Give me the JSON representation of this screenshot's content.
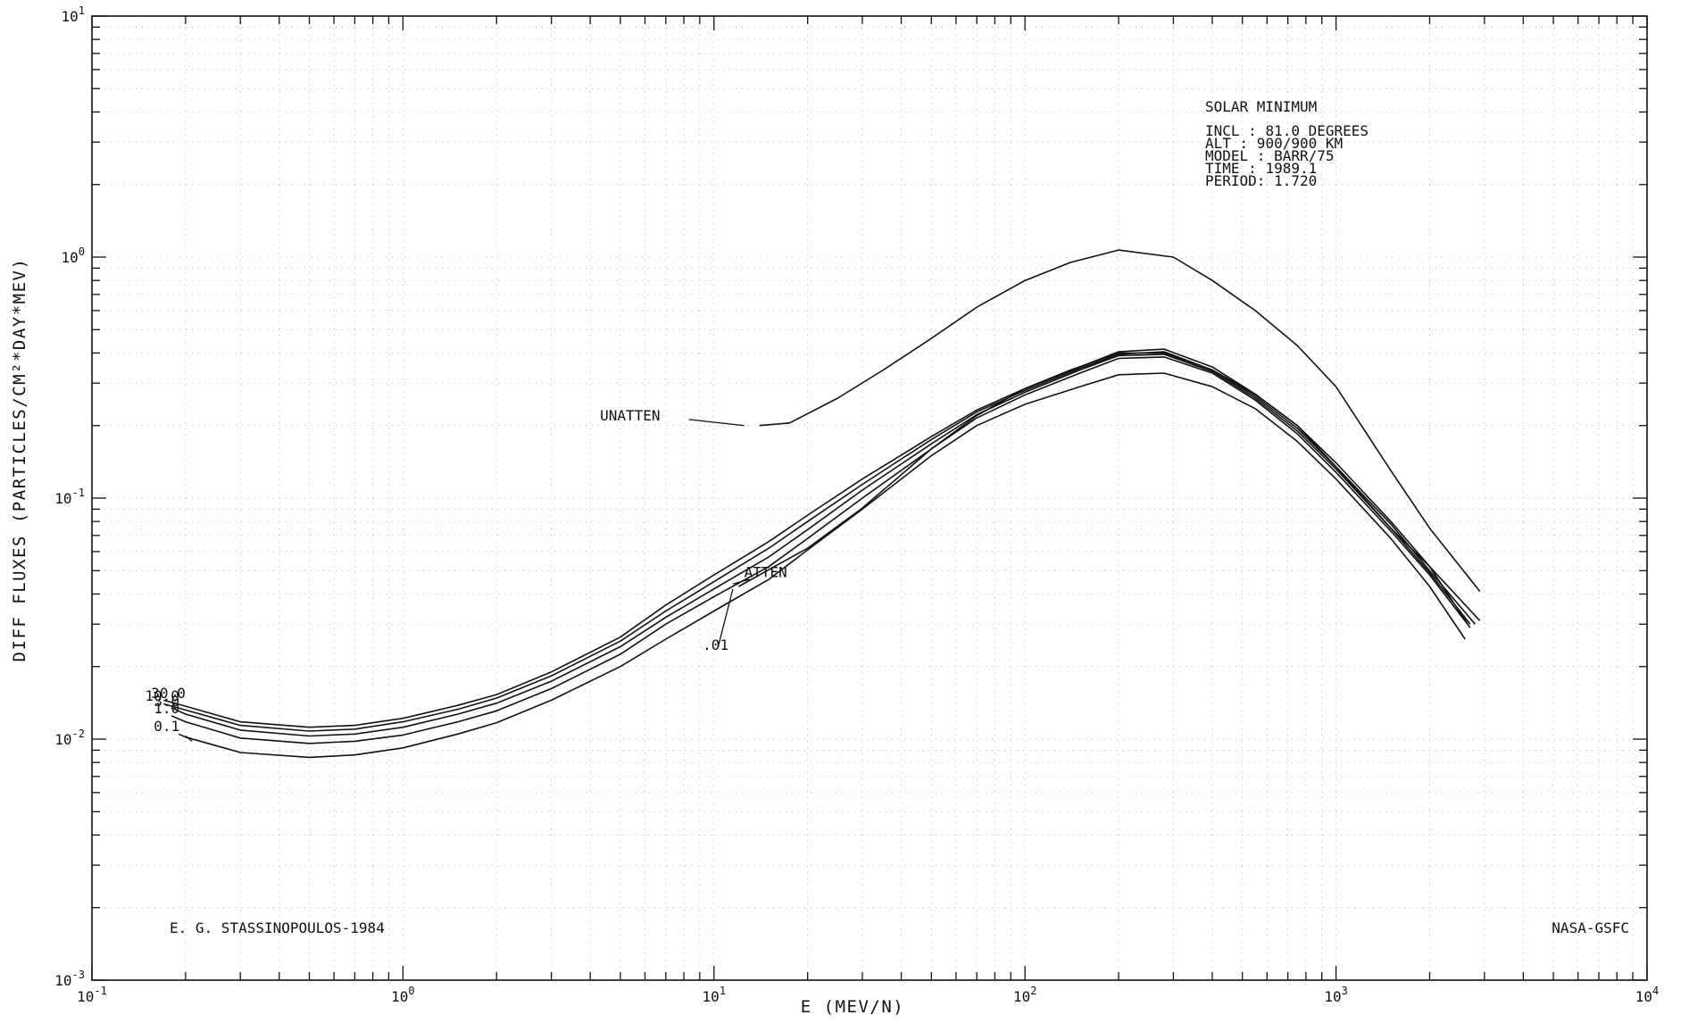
{
  "chart_data": {
    "type": "line",
    "title": "",
    "xlabel": "E (MEV/N)",
    "ylabel": "DIFF FLUXES (PARTICLES/CM²*DAY*MEV)",
    "x_scale": "log",
    "y_scale": "log",
    "xlim": [
      0.1,
      10000
    ],
    "ylim": [
      0.001,
      10
    ],
    "grid": true,
    "x_ticks": [
      {
        "value": 0.1,
        "base": "10",
        "exp": "-1"
      },
      {
        "value": 1,
        "base": "10",
        "exp": "0"
      },
      {
        "value": 10,
        "base": "10",
        "exp": "1"
      },
      {
        "value": 100,
        "base": "10",
        "exp": "2"
      },
      {
        "value": 1000,
        "base": "10",
        "exp": "3"
      },
      {
        "value": 10000,
        "base": "10",
        "exp": "4"
      }
    ],
    "y_ticks": [
      {
        "value": 0.001,
        "base": "10",
        "exp": "-3"
      },
      {
        "value": 0.01,
        "base": "10",
        "exp": "-2"
      },
      {
        "value": 0.1,
        "base": "10",
        "exp": "-1"
      },
      {
        "value": 1,
        "base": "10",
        "exp": "0"
      },
      {
        "value": 10,
        "base": "10",
        "exp": "1"
      }
    ],
    "info_box": {
      "heading": "SOLAR MINIMUM",
      "rows": [
        {
          "key": "INCL  ",
          "value": " 81.0  DEGREES"
        },
        {
          "key": "ALT   ",
          "value": " 900/900 KM"
        },
        {
          "key": "MODEL ",
          "value": " BARR/75"
        },
        {
          "key": "TIME  ",
          "value": " 1989.1"
        },
        {
          "key": "PERIOD",
          "value": " 1.720"
        }
      ]
    },
    "author": "E. G. STASSINOPOULOS-1984",
    "agency": "NASA-GSFC",
    "series": [
      {
        "name": "UNATTEN",
        "x": [
          14,
          17.5,
          25,
          35,
          50,
          70,
          100,
          140,
          200,
          300,
          400,
          550,
          750,
          1000,
          1500,
          2000,
          2900
        ],
        "y": [
          0.2,
          0.205,
          0.26,
          0.34,
          0.46,
          0.62,
          0.8,
          0.95,
          1.07,
          1.0,
          0.8,
          0.6,
          0.43,
          0.29,
          0.13,
          0.075,
          0.041
        ]
      },
      {
        "name": "ATTEN",
        "x": [
          12,
          20,
          30,
          40,
          50,
          70,
          100,
          140,
          200,
          280,
          400,
          550,
          750,
          1000,
          1500,
          2000,
          2650
        ],
        "y": [
          0.043,
          0.062,
          0.091,
          0.125,
          0.16,
          0.22,
          0.285,
          0.34,
          0.4,
          0.4,
          0.34,
          0.27,
          0.2,
          0.135,
          0.075,
          0.052,
          0.03
        ]
      },
      {
        "name": "30.0",
        "x": [
          0.17,
          0.2,
          0.3,
          0.5,
          0.7,
          1,
          1.5,
          2,
          3,
          5,
          7,
          10,
          15,
          20,
          30,
          50,
          70,
          100,
          150,
          200,
          280,
          400,
          550,
          750,
          1000,
          1500,
          2000,
          2900
        ],
        "y": [
          0.0145,
          0.0137,
          0.0118,
          0.0112,
          0.0114,
          0.0122,
          0.0138,
          0.0153,
          0.019,
          0.0265,
          0.036,
          0.048,
          0.066,
          0.085,
          0.12,
          0.18,
          0.232,
          0.285,
          0.35,
          0.405,
          0.415,
          0.35,
          0.27,
          0.2,
          0.14,
          0.08,
          0.052,
          0.031
        ]
      },
      {
        "name": "10.0",
        "x": [
          0.17,
          0.2,
          0.3,
          0.5,
          0.7,
          1,
          1.5,
          2,
          3,
          5,
          7,
          10,
          15,
          20,
          30,
          50,
          70,
          100,
          150,
          200,
          280,
          400,
          550,
          750,
          1000,
          1500,
          2000,
          2800
        ],
        "y": [
          0.014,
          0.0132,
          0.0114,
          0.0108,
          0.011,
          0.0118,
          0.0133,
          0.0148,
          0.0183,
          0.0255,
          0.034,
          0.045,
          0.062,
          0.08,
          0.114,
          0.175,
          0.228,
          0.28,
          0.345,
          0.395,
          0.405,
          0.34,
          0.265,
          0.195,
          0.135,
          0.078,
          0.05,
          0.03
        ]
      },
      {
        "name": "3.0",
        "x": [
          0.18,
          0.2,
          0.3,
          0.5,
          0.7,
          1,
          1.5,
          2,
          3,
          5,
          7,
          10,
          15,
          20,
          30,
          50,
          70,
          100,
          150,
          200,
          280,
          400,
          550,
          750,
          1000,
          1500,
          2000,
          2700
        ],
        "y": [
          0.0135,
          0.0127,
          0.0109,
          0.0103,
          0.0105,
          0.0112,
          0.0127,
          0.0141,
          0.0174,
          0.0242,
          0.032,
          0.042,
          0.057,
          0.074,
          0.108,
          0.168,
          0.222,
          0.275,
          0.34,
          0.39,
          0.395,
          0.335,
          0.26,
          0.19,
          0.132,
          0.075,
          0.049,
          0.03
        ]
      },
      {
        "name": "1.0",
        "x": [
          0.18,
          0.2,
          0.3,
          0.5,
          0.7,
          1,
          1.5,
          2,
          3,
          5,
          7,
          10,
          15,
          20,
          30,
          50,
          70,
          100,
          150,
          200,
          280,
          400,
          550,
          750,
          1000,
          1500,
          2000,
          2700
        ],
        "y": [
          0.0125,
          0.0118,
          0.0101,
          0.0096,
          0.0098,
          0.0104,
          0.0118,
          0.0131,
          0.0162,
          0.0225,
          0.03,
          0.039,
          0.052,
          0.068,
          0.1,
          0.16,
          0.215,
          0.268,
          0.33,
          0.38,
          0.385,
          0.33,
          0.255,
          0.185,
          0.128,
          0.073,
          0.048,
          0.029
        ]
      },
      {
        "name": "0.1",
        "x": [
          0.19,
          0.2,
          0.3,
          0.5,
          0.7,
          1,
          1.5,
          2,
          3,
          5,
          7,
          10,
          15,
          20,
          30,
          50,
          70,
          100,
          150,
          200,
          280,
          400,
          550,
          750,
          1000,
          1500,
          2000,
          2600
        ],
        "y": [
          0.0105,
          0.0102,
          0.0088,
          0.0084,
          0.0086,
          0.0092,
          0.0105,
          0.0117,
          0.0145,
          0.02,
          0.026,
          0.034,
          0.046,
          0.061,
          0.09,
          0.15,
          0.2,
          0.245,
          0.29,
          0.325,
          0.33,
          0.29,
          0.235,
          0.172,
          0.12,
          0.068,
          0.043,
          0.026
        ]
      }
    ],
    "curve_labels": [
      {
        "text": "UNATTEN",
        "x": 4.3,
        "y": 0.21
      },
      {
        "text": "ATTEN",
        "x": 12.5,
        "y": 0.047
      },
      {
        "text": ".01",
        "x": 9.2,
        "y": 0.0235
      },
      {
        "text": "30.0",
        "x": 0.155,
        "y": 0.0148
      },
      {
        "text": "10.0",
        "x": 0.148,
        "y": 0.0144
      },
      {
        "text": "3.0",
        "x": 0.158,
        "y": 0.0137
      },
      {
        "text": "1.0",
        "x": 0.158,
        "y": 0.0128
      },
      {
        "text": "0.1",
        "x": 0.158,
        "y": 0.0108
      }
    ]
  }
}
